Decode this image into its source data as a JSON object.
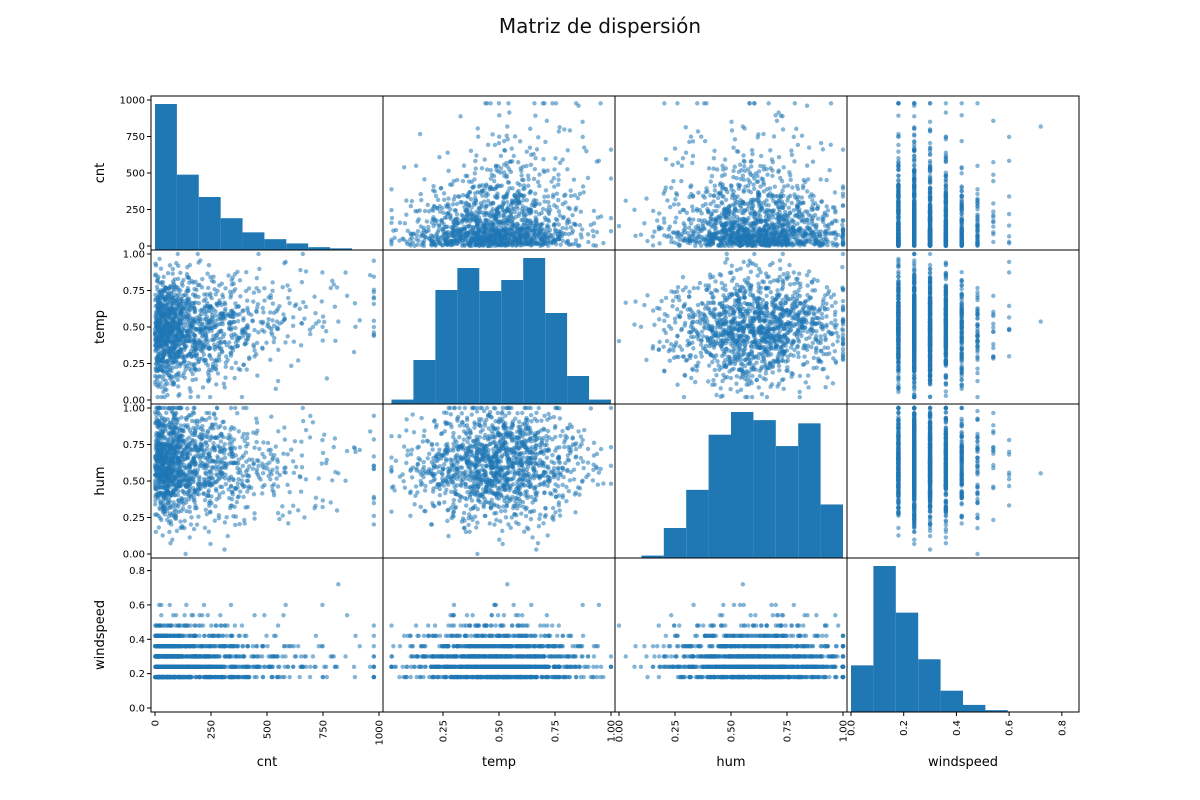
{
  "chart_data": {
    "type": "scatter",
    "title": "Matriz de dispersión",
    "variables": [
      "cnt",
      "temp",
      "hum",
      "windspeed"
    ],
    "diagonal": "hist",
    "grid": false,
    "color": "#1f77b4",
    "ranges": {
      "cnt": [
        0,
        1000
      ],
      "temp": [
        0,
        1
      ],
      "hum": [
        0,
        1
      ],
      "windspeed": [
        0,
        0.85
      ]
    },
    "y_ticks": {
      "cnt": [
        "0",
        "250",
        "500",
        "750",
        "1000"
      ],
      "temp": [
        "0.00",
        "0.25",
        "0.50",
        "0.75",
        "1.00"
      ],
      "hum": [
        "0.00",
        "0.25",
        "0.50",
        "0.75",
        "1.00"
      ],
      "windspeed": [
        "0.0",
        "0.2",
        "0.4",
        "0.6",
        "0.8"
      ]
    },
    "x_ticks": {
      "cnt": [
        "0",
        "250",
        "500",
        "750",
        "1000"
      ],
      "temp": [
        "0.25",
        "0.50",
        "0.75",
        "1.00"
      ],
      "hum": [
        "0.00",
        "0.25",
        "0.50",
        "0.75",
        "1.00"
      ],
      "windspeed": [
        "0.0",
        "0.2",
        "0.4",
        "0.6",
        "0.8"
      ]
    },
    "histograms": {
      "cnt": {
        "bins": [
          0,
          97.7,
          195.4,
          293.1,
          390.8,
          488.5,
          586.2,
          683.9,
          781.6,
          879.3,
          977
        ],
        "counts": [
          6200,
          3200,
          2250,
          1350,
          750,
          460,
          280,
          120,
          70,
          20
        ]
      },
      "temp": {
        "bins": [
          0.02,
          0.118,
          0.216,
          0.314,
          0.412,
          0.51,
          0.608,
          0.706,
          0.804,
          0.902,
          1.0
        ],
        "counts": [
          220,
          2200,
          5700,
          6800,
          5650,
          6200,
          7300,
          4550,
          1400,
          220
        ]
      },
      "hum": {
        "bins": [
          0,
          0.1,
          0.2,
          0.3,
          0.4,
          0.5,
          0.6,
          0.7,
          0.8,
          0.9,
          1.0
        ],
        "counts": [
          20,
          150,
          1850,
          4200,
          7600,
          9000,
          8500,
          6900,
          8300,
          3300
        ]
      },
      "windspeed": {
        "bins": [
          0,
          0.085,
          0.17,
          0.255,
          0.34,
          0.425,
          0.51,
          0.595,
          0.68,
          0.765,
          0.85
        ],
        "counts": [
          2300,
          7200,
          4900,
          2600,
          1050,
          350,
          90,
          20,
          5,
          2
        ]
      }
    }
  }
}
